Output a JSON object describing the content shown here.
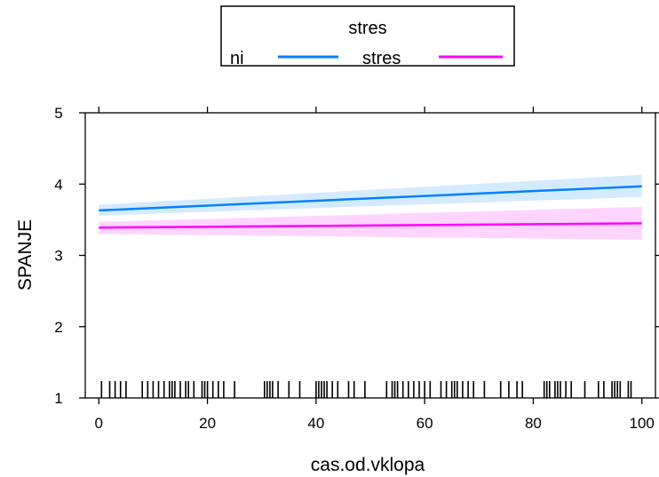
{
  "chart_data": {
    "type": "line",
    "title": "",
    "xlabel": "cas.od.vklopa",
    "ylabel": "SPANJE",
    "xlim": [
      -2.5,
      102.5
    ],
    "ylim": [
      1,
      5
    ],
    "x_ticks": [
      "0",
      "20",
      "40",
      "60",
      "80",
      "100"
    ],
    "y_ticks": [
      "1",
      "2",
      "3",
      "4",
      "5"
    ],
    "legend": {
      "title": "stres",
      "position": "top",
      "entries": [
        "ni",
        "stres"
      ]
    },
    "series": [
      {
        "name": "ni",
        "color": "#0080ff",
        "band_color": "#cce6ff",
        "x": [
          0,
          100
        ],
        "y": [
          3.63,
          3.97
        ],
        "lower": [
          3.56,
          3.82
        ],
        "upper": [
          3.71,
          4.13
        ]
      },
      {
        "name": "stres",
        "color": "#ff00ff",
        "band_color": "#ffccff",
        "x": [
          0,
          100
        ],
        "y": [
          3.39,
          3.45
        ],
        "lower": [
          3.3,
          3.22
        ],
        "upper": [
          3.47,
          3.68
        ]
      }
    ],
    "rug": [
      0.5,
      2,
      3,
      4,
      5,
      8,
      9,
      10,
      11,
      12,
      13,
      13.5,
      14,
      15,
      16,
      16.5,
      17.5,
      19,
      19.5,
      20,
      21,
      22,
      23,
      25,
      30.5,
      31,
      31.5,
      32,
      33,
      35,
      37,
      40,
      40.5,
      41,
      41.5,
      42,
      43,
      44,
      46,
      47,
      49,
      53,
      54,
      54.5,
      55,
      56,
      57,
      58,
      59,
      60,
      61,
      63,
      64,
      65,
      65.5,
      66,
      67,
      68,
      69,
      71,
      74,
      75.5,
      77,
      78,
      82,
      82.5,
      83,
      84,
      84.5,
      85,
      86,
      87,
      89.5,
      92,
      93,
      94.5,
      95,
      95.5,
      96,
      97.5,
      98
    ]
  }
}
